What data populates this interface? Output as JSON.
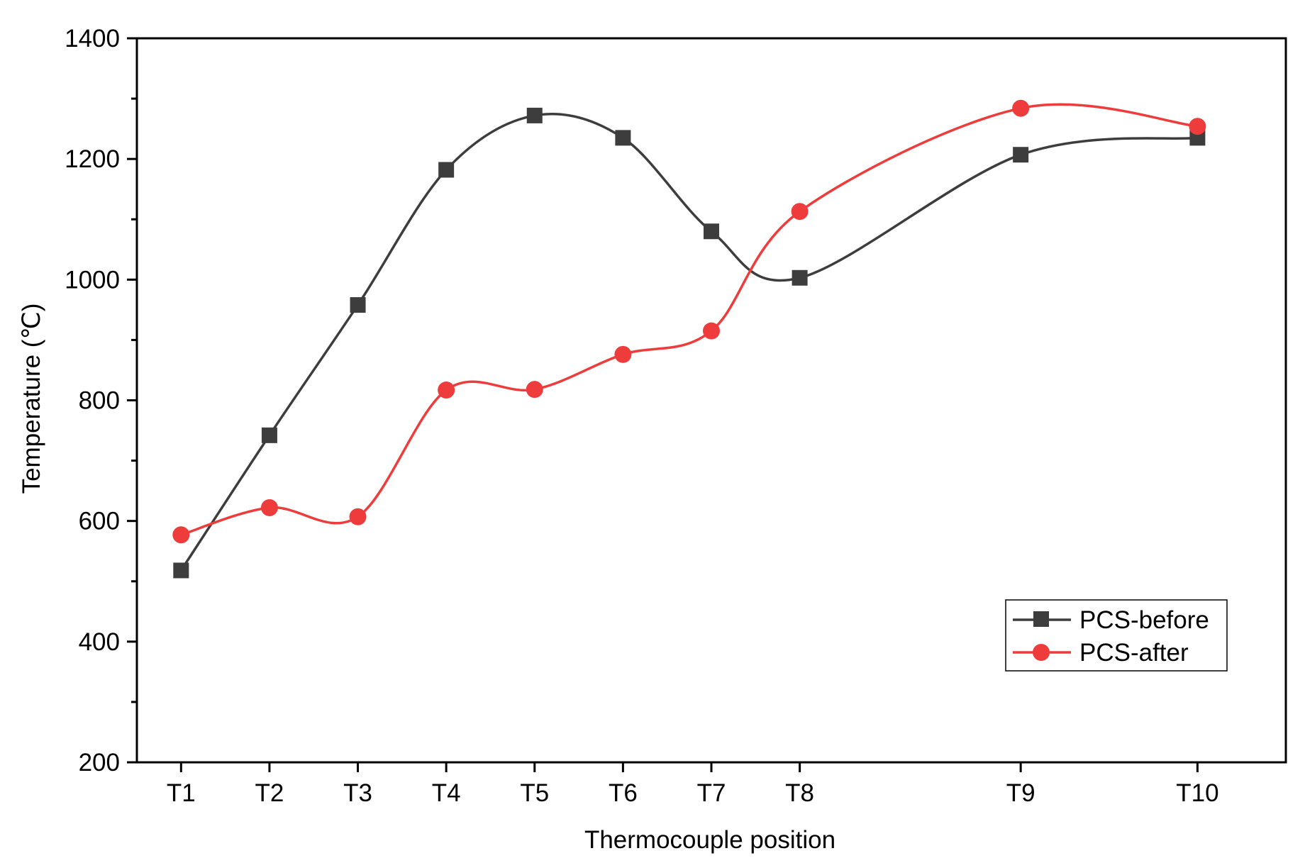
{
  "chart_data": {
    "type": "line",
    "title": "",
    "xlabel": "Thermocouple position",
    "ylabel": "Temperature (℃)",
    "ylim": [
      200,
      1400
    ],
    "yticks": [
      200,
      400,
      600,
      800,
      1000,
      1200,
      1400
    ],
    "yminor_step": 100,
    "categories": [
      "T1",
      "T2",
      "T3",
      "T4",
      "T5",
      "T6",
      "T7",
      "T8",
      "T9",
      "T10"
    ],
    "x": [
      1,
      2,
      3,
      4,
      5,
      6,
      7,
      8,
      10.5,
      12.5
    ],
    "xlim": [
      0.5,
      13.5
    ],
    "grid": false,
    "legend_position": "bottom-right",
    "series": [
      {
        "name": "PCS-before",
        "color": "#3d3d3d",
        "marker": "square",
        "values": [
          518,
          742,
          958,
          1182,
          1272,
          1235,
          1080,
          1003,
          1207,
          1235
        ]
      },
      {
        "name": "PCS-after",
        "color": "#ee3c3c",
        "marker": "circle",
        "values": [
          577,
          622,
          607,
          817,
          818,
          876,
          915,
          1113,
          1284,
          1254
        ]
      }
    ]
  }
}
